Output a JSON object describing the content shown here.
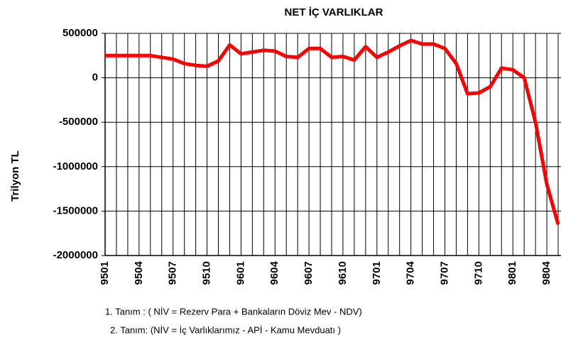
{
  "chart_data": {
    "type": "line",
    "title": "NET İÇ VARLIKLAR",
    "ylabel": "Trilyon TL",
    "categories": [
      "9501",
      null,
      null,
      "9504",
      null,
      null,
      "9507",
      null,
      null,
      "9510",
      null,
      null,
      "9601",
      null,
      null,
      "9604",
      null,
      null,
      "9607",
      null,
      null,
      "9610",
      null,
      null,
      "9701",
      null,
      null,
      "9704",
      null,
      null,
      "9707",
      null,
      null,
      "9710",
      null,
      null,
      "9801",
      null,
      null,
      "9804",
      null
    ],
    "series": [
      {
        "name": "NET İÇ VARLIKLAR",
        "color": "#ff0000",
        "values": [
          250000,
          250000,
          250000,
          250000,
          250000,
          230000,
          210000,
          160000,
          140000,
          130000,
          190000,
          370000,
          270000,
          290000,
          310000,
          300000,
          240000,
          230000,
          330000,
          330000,
          230000,
          240000,
          200000,
          350000,
          230000,
          290000,
          360000,
          420000,
          380000,
          380000,
          330000,
          160000,
          -180000,
          -170000,
          -100000,
          110000,
          90000,
          0,
          -500000,
          -1200000,
          -1650000
        ]
      }
    ],
    "ylim": [
      -2000000,
      500000
    ],
    "yticks": [
      -2000000,
      -1500000,
      -1000000,
      -500000,
      0,
      500000
    ],
    "grid": true,
    "notes": [
      "1. Tanım : ( NİV = Rezerv Para + Bankaların Döviz Mev - NDV)",
      "2. Tanım: (NİV = İç Varlıklarımız - APİ - Kamu Mevduatı )"
    ]
  }
}
